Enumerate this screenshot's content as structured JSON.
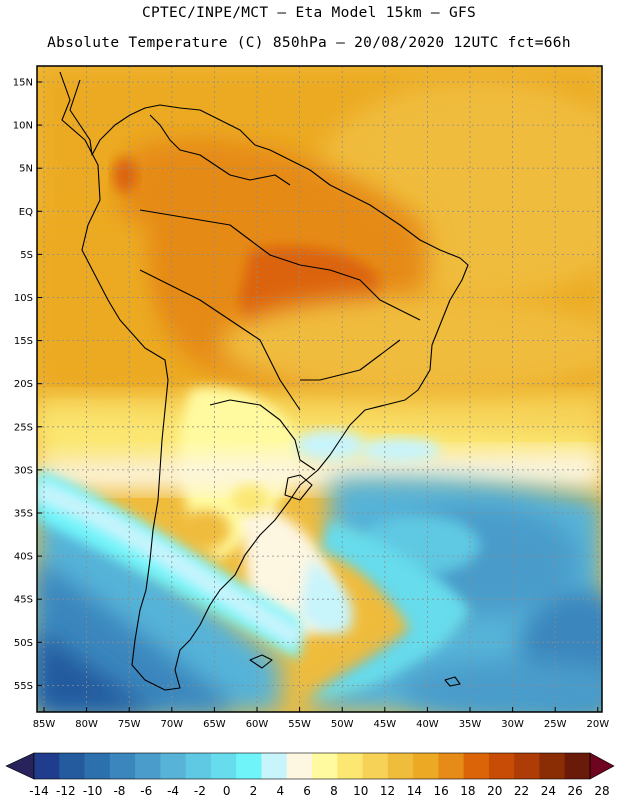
{
  "title": {
    "line1": "CPTEC/INPE/MCT –  Eta Model 15km – GFS",
    "line2": "Absolute Temperature (C) 850hPa – 20/08/2020 12UTC fct=66h"
  },
  "map": {
    "lat_labels": [
      "15N",
      "10N",
      "5N",
      "EQ",
      "5S",
      "10S",
      "15S",
      "20S",
      "25S",
      "30S",
      "35S",
      "40S",
      "45S",
      "50S",
      "55S"
    ],
    "lon_labels": [
      "85W",
      "80W",
      "75W",
      "70W",
      "65W",
      "60W",
      "55W",
      "50W",
      "45W",
      "40W",
      "35W",
      "30W",
      "25W",
      "20W"
    ],
    "colorbar": {
      "ticks": [
        "-14",
        "-12",
        "-10",
        "-8",
        "-6",
        "-4",
        "-2",
        "0",
        "2",
        "4",
        "6",
        "8",
        "10",
        "12",
        "14",
        "16",
        "18",
        "20",
        "22",
        "24",
        "26",
        "28"
      ],
      "colors": [
        "#1f3d8c",
        "#245a9e",
        "#2c70ad",
        "#3a86bd",
        "#4a9cca",
        "#57b3d8",
        "#5fc8e2",
        "#66dcec",
        "#6ff4fa",
        "#c8f4fc",
        "#fdf6e1",
        "#fffaa0",
        "#fbe772",
        "#f6d256",
        "#f0bc3c",
        "#ecaa24",
        "#e68a18",
        "#dc6408",
        "#c84b06",
        "#ae3c06",
        "#8a2c04",
        "#6a1a08"
      ],
      "under_color": "#28235a",
      "over_color": "#6e0420"
    },
    "colors": {
      "frame": "#000000",
      "coast": "#000000",
      "grid": "#8c8c8c"
    }
  }
}
